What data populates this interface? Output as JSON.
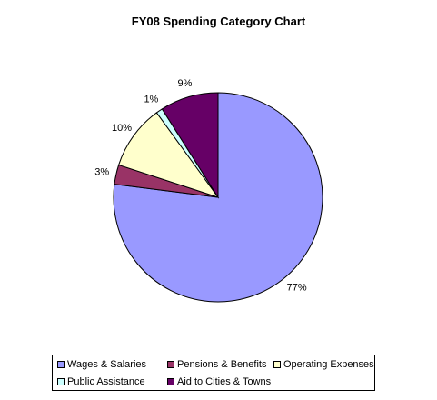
{
  "chart_data": {
    "type": "pie",
    "title": "FY08 Spending Category Chart",
    "slices": [
      {
        "label": "Wages & Salaries",
        "value": 77,
        "value_label": "77%",
        "color": "#9999FF"
      },
      {
        "label": "Pensions & Benefits",
        "value": 3,
        "value_label": "3%",
        "color": "#993366"
      },
      {
        "label": "Operating Expenses",
        "value": 10,
        "value_label": "10%",
        "color": "#FFFFCC"
      },
      {
        "label": "Public Assistance",
        "value": 1,
        "value_label": "1%",
        "color": "#CCFFFF"
      },
      {
        "label": "Aid to Cities & Towns",
        "value": 9,
        "value_label": "9%",
        "color": "#660066"
      }
    ],
    "start_angle_deg": 0,
    "direction": "clockwise",
    "legend_position": "bottom"
  }
}
